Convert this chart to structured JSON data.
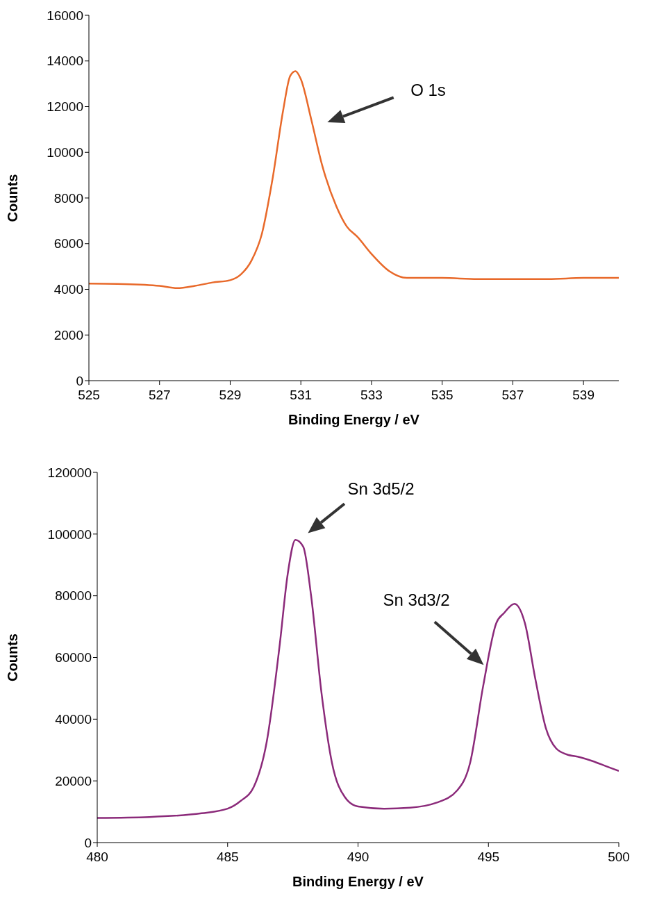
{
  "chart_data": [
    {
      "type": "line",
      "xlabel": "Binding Energy / eV",
      "ylabel": "Counts",
      "xlim": [
        525,
        540
      ],
      "xticks": [
        525,
        527,
        529,
        531,
        533,
        535,
        537,
        539
      ],
      "ylim": [
        0,
        16000
      ],
      "yticks": [
        0,
        2000,
        4000,
        6000,
        8000,
        10000,
        12000,
        14000,
        16000
      ],
      "x": [
        525,
        526,
        527,
        527.5,
        528,
        528.5,
        529,
        529.3,
        529.6,
        529.9,
        530.2,
        530.5,
        530.7,
        530.85,
        531,
        531.3,
        531.6,
        532,
        532.3,
        532.6,
        533,
        533.5,
        534,
        535,
        536,
        537,
        538,
        539,
        540
      ],
      "series": [
        {
          "color": "#e8692a",
          "values": [
            4250,
            4230,
            4150,
            4050,
            4150,
            4300,
            4400,
            4650,
            5250,
            6450,
            8850,
            11850,
            13350,
            13550,
            13200,
            11400,
            9450,
            7650,
            6750,
            6300,
            5550,
            4800,
            4500,
            4500,
            4450,
            4450,
            4450,
            4500,
            4500
          ]
        }
      ],
      "annotations": [
        "O 1s"
      ]
    },
    {
      "type": "line",
      "xlabel": "Binding Energy / eV",
      "ylabel": "Counts",
      "xlim": [
        480,
        500
      ],
      "xticks": [
        480,
        485,
        490,
        495,
        500
      ],
      "ylim": [
        0,
        120000
      ],
      "yticks": [
        0,
        20000,
        40000,
        60000,
        80000,
        100000,
        120000
      ],
      "x": [
        480,
        482,
        484,
        485,
        485.5,
        486,
        486.5,
        487,
        487.3,
        487.6,
        487.9,
        488.2,
        488.6,
        489,
        489.5,
        490,
        491,
        492,
        493,
        493.8,
        494.3,
        494.8,
        495.3,
        495.6,
        496,
        496.4,
        496.8,
        497.2,
        497.6,
        498,
        498.5,
        499,
        499.5,
        500
      ],
      "series": [
        {
          "color": "#8b2a7a",
          "values": [
            8000,
            8300,
            9500,
            11000,
            13500,
            18000,
            32700,
            64300,
            86800,
            98100,
            95900,
            80100,
            48500,
            25900,
            14700,
            11700,
            11000,
            11300,
            12900,
            16900,
            25900,
            50800,
            71100,
            74400,
            77400,
            71100,
            53000,
            37200,
            30500,
            28600,
            27700,
            26400,
            24800,
            23200
          ]
        }
      ],
      "annotations": [
        "Sn 3d5/2",
        "Sn 3d3/2"
      ]
    }
  ]
}
